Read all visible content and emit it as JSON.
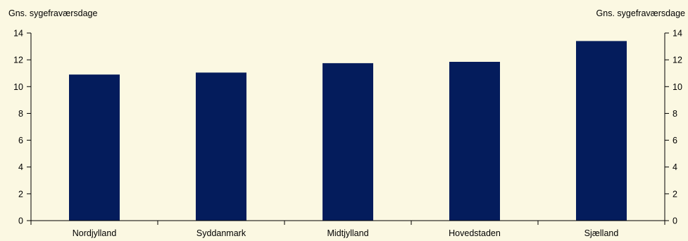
{
  "chart_data": {
    "type": "bar",
    "title": "",
    "ylabel_left": "Gns. sygefraværsdage",
    "ylabel_right": "Gns. sygefraværsdage",
    "xlabel": "",
    "categories": [
      "Nordjylland",
      "Syddanmark",
      "Midtjylland",
      "Hovedstaden",
      "Sjælland"
    ],
    "values": [
      10.9,
      11.05,
      11.75,
      11.85,
      13.4
    ],
    "ylim": [
      0,
      14
    ],
    "yticks": [
      "0",
      "2",
      "4",
      "6",
      "8",
      "10",
      "12",
      "14"
    ],
    "grid": false,
    "legend": "none"
  },
  "colors": {
    "background": "#fbf8e2",
    "bar": "#041c5c",
    "axis": "#000000"
  }
}
